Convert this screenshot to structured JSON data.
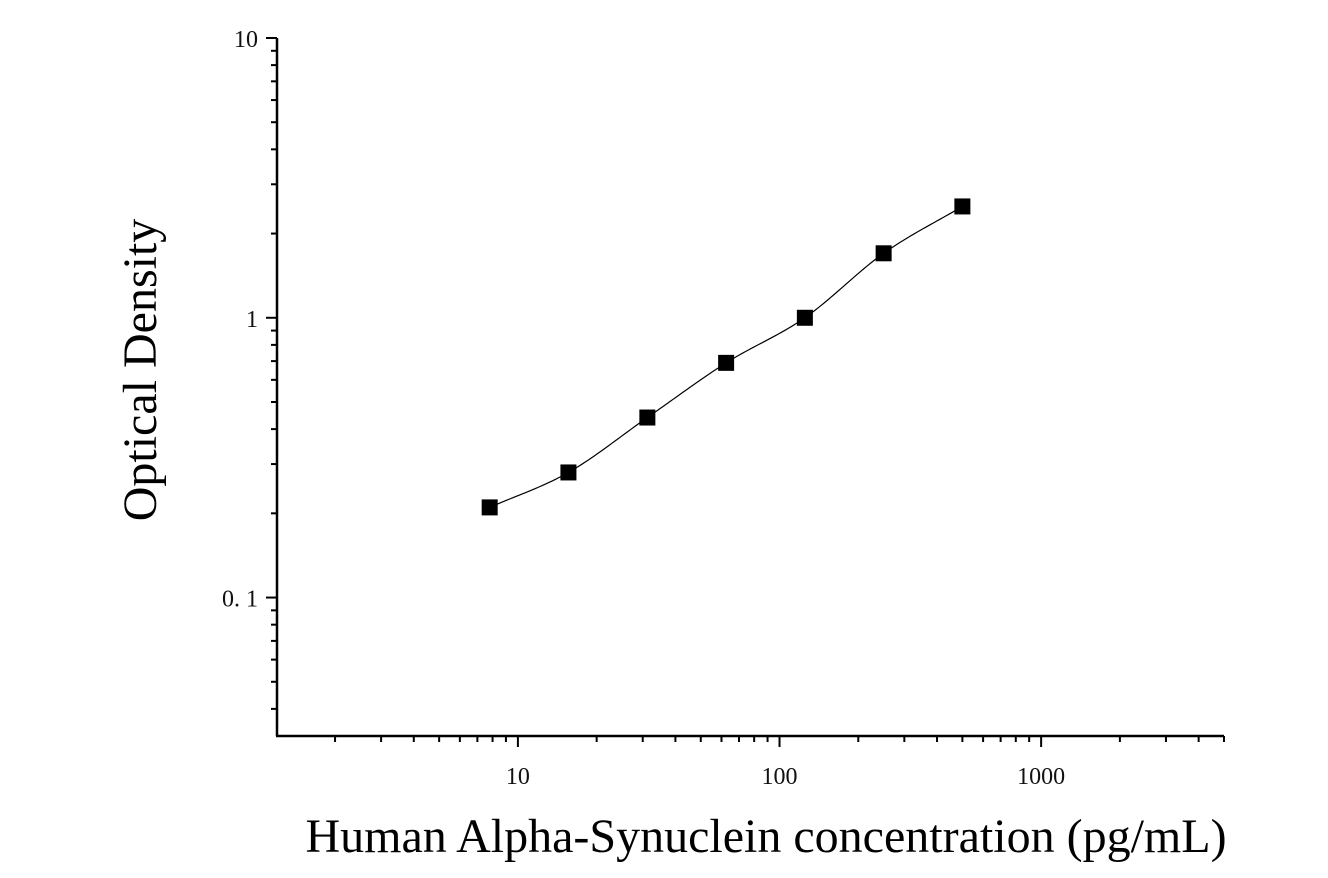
{
  "chart_data": {
    "type": "scatter",
    "title": "",
    "xlabel": "Human Alpha-Synuclein concentration (pg/mL)",
    "ylabel": "Optical Density",
    "x_scale": "log",
    "y_scale": "log",
    "xlim": [
      1.2,
      5000
    ],
    "ylim": [
      0.032,
      10
    ],
    "x_ticks": [
      {
        "value": 10,
        "label": "10"
      },
      {
        "value": 100,
        "label": "100"
      },
      {
        "value": 1000,
        "label": "1000"
      }
    ],
    "y_ticks": [
      {
        "value": 10,
        "label": "10"
      },
      {
        "value": 1,
        "label": "1"
      },
      {
        "value": 0.1,
        "label": "0. 1"
      }
    ],
    "grid": false,
    "legend": "none",
    "series": [
      {
        "marker": "square",
        "color": "#000000",
        "fit_line": true,
        "x": [
          7.8,
          15.6,
          31.25,
          62.5,
          125,
          250,
          500
        ],
        "y": [
          0.21,
          0.28,
          0.44,
          0.69,
          1.0,
          1.7,
          2.5
        ]
      }
    ]
  }
}
